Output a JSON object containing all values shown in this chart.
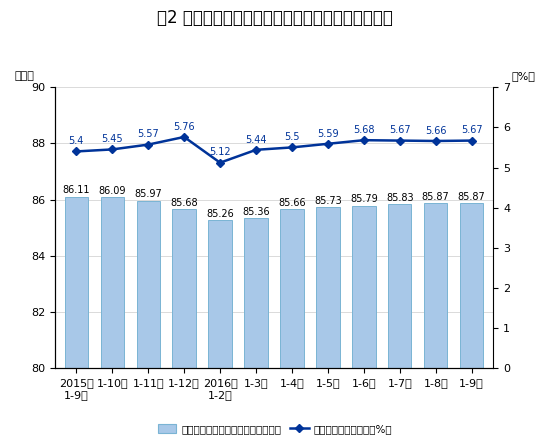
{
  "title": "图2 各月累计利润率与每百元主营业务收入中的成本",
  "ylabel_left": "（元）",
  "ylabel_right": "（%）",
  "categories": [
    "2015年\n1-9月",
    "1-10月",
    "1-11月",
    "1-12月",
    "2016年\n1-2月",
    "1-3月",
    "1-4月",
    "1-5月",
    "1-6月",
    "1-7月",
    "1-8月",
    "1-9月"
  ],
  "bar_values": [
    86.11,
    86.09,
    85.97,
    85.68,
    85.26,
    85.36,
    85.66,
    85.73,
    85.79,
    85.83,
    85.87,
    85.87
  ],
  "line_values": [
    5.4,
    5.45,
    5.57,
    5.76,
    5.12,
    5.44,
    5.5,
    5.59,
    5.68,
    5.67,
    5.66,
    5.67
  ],
  "bar_color": "#a8c8e8",
  "bar_edge_color": "#7ab4d4",
  "line_color": "#003399",
  "marker_color": "#003399",
  "ylim_left": [
    80,
    90
  ],
  "ylim_right": [
    0,
    7
  ],
  "yticks_left": [
    80,
    82,
    84,
    86,
    88,
    90
  ],
  "yticks_right": [
    0,
    1,
    2,
    3,
    4,
    5,
    6,
    7
  ],
  "legend_bar": "每百元主营业务收入中的成本（元）",
  "legend_line": "主营业务收入利润率（%）",
  "title_fontsize": 12,
  "tick_fontsize": 8,
  "label_fontsize": 8,
  "value_fontsize": 7,
  "background_color": "#ffffff",
  "grid_color": "#cccccc",
  "bar_label_color": "#000000",
  "line_label_color": "#003399"
}
